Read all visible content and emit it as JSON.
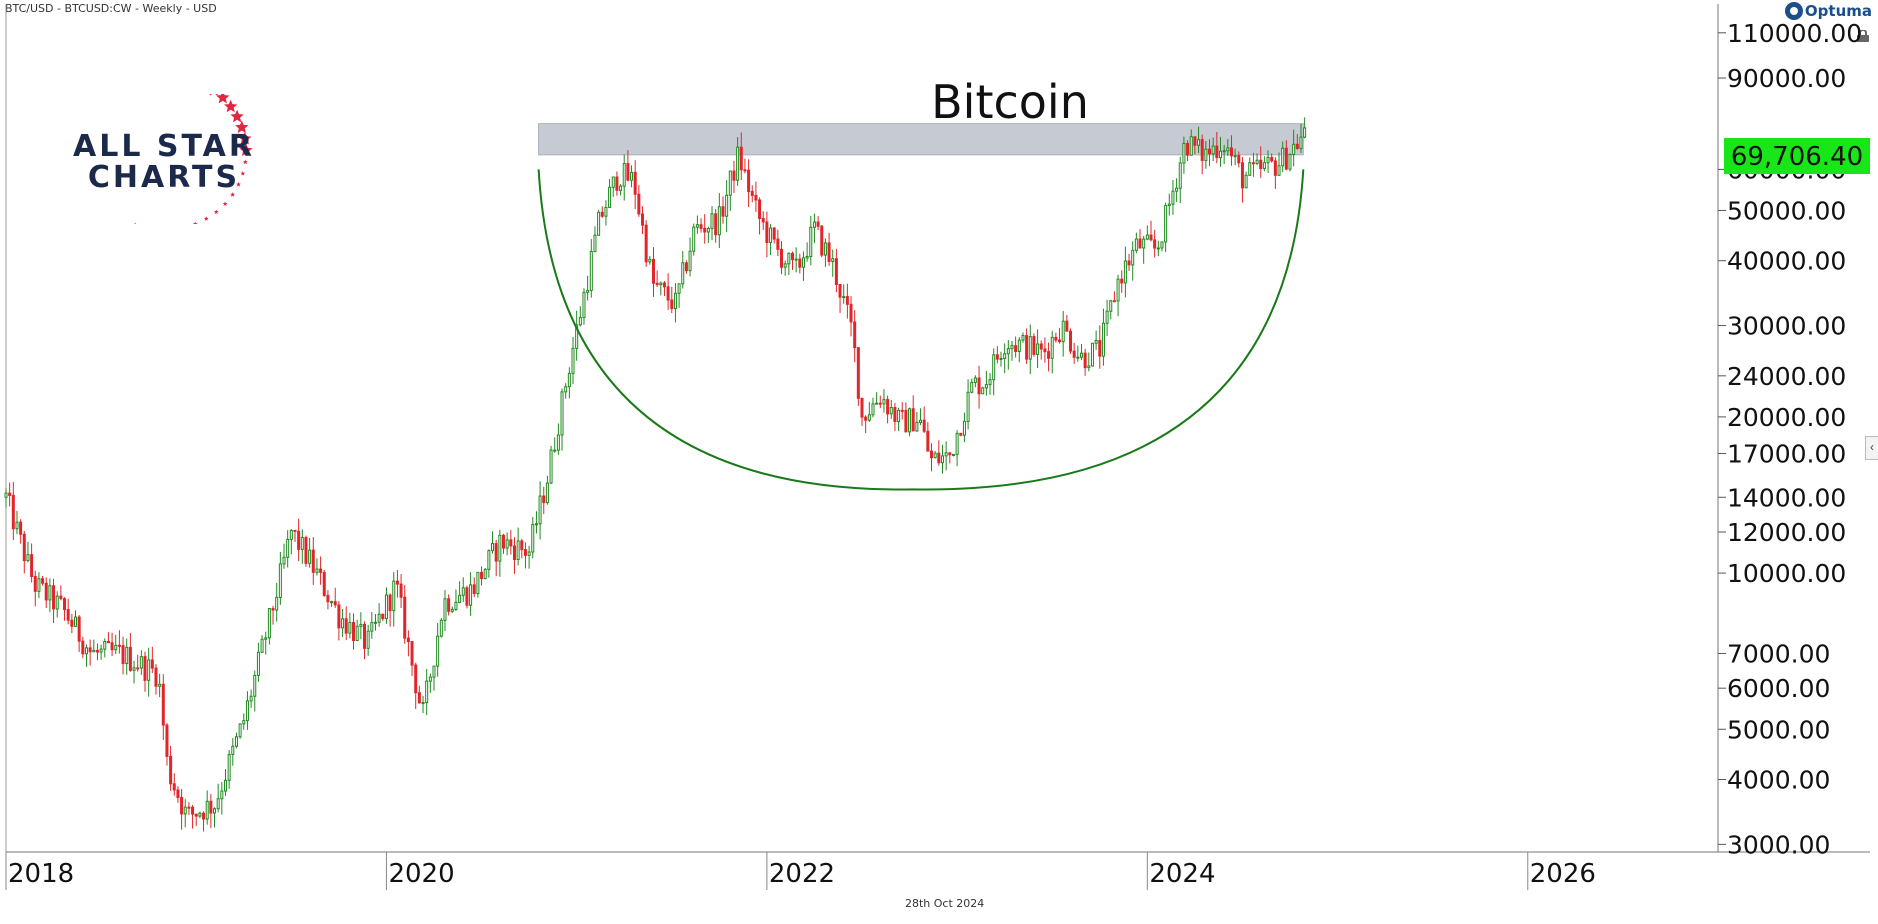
{
  "header": {
    "symbol_line": "BTC/USD - BTCUSD:CW - Weekly - USD",
    "brand": "Optuma"
  },
  "logo": {
    "line1": "ALL STAR",
    "line2": "CHARTS",
    "colors": {
      "text": "#1b2a4a",
      "stars": "#e3263f"
    }
  },
  "footer": {
    "date_label": "28th Oct 2024"
  },
  "icons": {
    "lock": "lock-icon",
    "collapse": "chevron-left-icon"
  },
  "colors": {
    "up_candle": "#1f8a1f",
    "down_candle": "#e0262a",
    "arc": "#1a7a1a",
    "resistance_band": "#c5cad3",
    "price_badge": "#19e619"
  },
  "chart_data": {
    "type": "candlestick",
    "title": "Bitcoin",
    "timeframe": "Weekly",
    "scale": "log",
    "x_ticks": [
      "2018",
      "2020",
      "2022",
      "2024",
      "2026"
    ],
    "y_ticks": [
      3000,
      4000,
      5000,
      6000,
      7000,
      10000,
      12000,
      14000,
      17000,
      20000,
      24000,
      30000,
      40000,
      50000,
      60000,
      90000,
      110000
    ],
    "y_tick_labels": [
      "3000.00",
      "4000.00",
      "5000.00",
      "6000.00",
      "7000.00",
      "10000.00",
      "12000.00",
      "14000.00",
      "17000.00",
      "20000.00",
      "24000.00",
      "30000.00",
      "40000.00",
      "50000.00",
      "60000.00",
      "90000.00",
      "110000.00"
    ],
    "ylim": [
      2900,
      125000
    ],
    "xlim": [
      2018.0,
      2027.0
    ],
    "last_price_label": "69,706.40",
    "last_price": 69706.4,
    "resistance_band": {
      "x_start": 2020.8,
      "x_end": 2024.82,
      "y_low": 64000,
      "y_high": 73500
    },
    "cup_arc": {
      "x_start": 2020.8,
      "x_end": 2024.82,
      "top_y": 60000,
      "bottom_x": 2022.77,
      "bottom_y": 14500
    },
    "anchor_points": [
      {
        "t": 2018.0,
        "v": 14000
      },
      {
        "t": 2018.15,
        "v": 9500
      },
      {
        "t": 2018.3,
        "v": 8500
      },
      {
        "t": 2018.45,
        "v": 7000
      },
      {
        "t": 2018.6,
        "v": 7000
      },
      {
        "t": 2018.8,
        "v": 6400
      },
      {
        "t": 2018.85,
        "v": 4200
      },
      {
        "t": 2018.95,
        "v": 3400
      },
      {
        "t": 2019.1,
        "v": 3600
      },
      {
        "t": 2019.25,
        "v": 5200
      },
      {
        "t": 2019.4,
        "v": 8500
      },
      {
        "t": 2019.5,
        "v": 12000
      },
      {
        "t": 2019.6,
        "v": 10500
      },
      {
        "t": 2019.75,
        "v": 8300
      },
      {
        "t": 2019.9,
        "v": 7300
      },
      {
        "t": 2020.05,
        "v": 9500
      },
      {
        "t": 2020.19,
        "v": 5300
      },
      {
        "t": 2020.3,
        "v": 8800
      },
      {
        "t": 2020.45,
        "v": 9300
      },
      {
        "t": 2020.6,
        "v": 11500
      },
      {
        "t": 2020.75,
        "v": 11000
      },
      {
        "t": 2020.85,
        "v": 15500
      },
      {
        "t": 2020.95,
        "v": 24000
      },
      {
        "t": 2021.05,
        "v": 36000
      },
      {
        "t": 2021.12,
        "v": 48000
      },
      {
        "t": 2021.22,
        "v": 59000
      },
      {
        "t": 2021.3,
        "v": 57000
      },
      {
        "t": 2021.4,
        "v": 36000
      },
      {
        "t": 2021.52,
        "v": 33000
      },
      {
        "t": 2021.62,
        "v": 46000
      },
      {
        "t": 2021.75,
        "v": 48000
      },
      {
        "t": 2021.85,
        "v": 64000
      },
      {
        "t": 2021.95,
        "v": 49000
      },
      {
        "t": 2022.05,
        "v": 42000
      },
      {
        "t": 2022.15,
        "v": 38000
      },
      {
        "t": 2022.25,
        "v": 46000
      },
      {
        "t": 2022.35,
        "v": 39000
      },
      {
        "t": 2022.45,
        "v": 29000
      },
      {
        "t": 2022.5,
        "v": 20000
      },
      {
        "t": 2022.6,
        "v": 22000
      },
      {
        "t": 2022.7,
        "v": 19500
      },
      {
        "t": 2022.8,
        "v": 20000
      },
      {
        "t": 2022.86,
        "v": 16500
      },
      {
        "t": 2022.96,
        "v": 16800
      },
      {
        "t": 2023.08,
        "v": 23000
      },
      {
        "t": 2023.15,
        "v": 23500
      },
      {
        "t": 2023.25,
        "v": 28000
      },
      {
        "t": 2023.35,
        "v": 27500
      },
      {
        "t": 2023.45,
        "v": 26500
      },
      {
        "t": 2023.55,
        "v": 30000
      },
      {
        "t": 2023.65,
        "v": 26000
      },
      {
        "t": 2023.75,
        "v": 27000
      },
      {
        "t": 2023.85,
        "v": 37000
      },
      {
        "t": 2023.95,
        "v": 43000
      },
      {
        "t": 2024.05,
        "v": 42000
      },
      {
        "t": 2024.12,
        "v": 52000
      },
      {
        "t": 2024.2,
        "v": 68000
      },
      {
        "t": 2024.3,
        "v": 64000
      },
      {
        "t": 2024.4,
        "v": 68000
      },
      {
        "t": 2024.5,
        "v": 58000
      },
      {
        "t": 2024.6,
        "v": 60000
      },
      {
        "t": 2024.7,
        "v": 62000
      },
      {
        "t": 2024.82,
        "v": 69706
      }
    ]
  }
}
